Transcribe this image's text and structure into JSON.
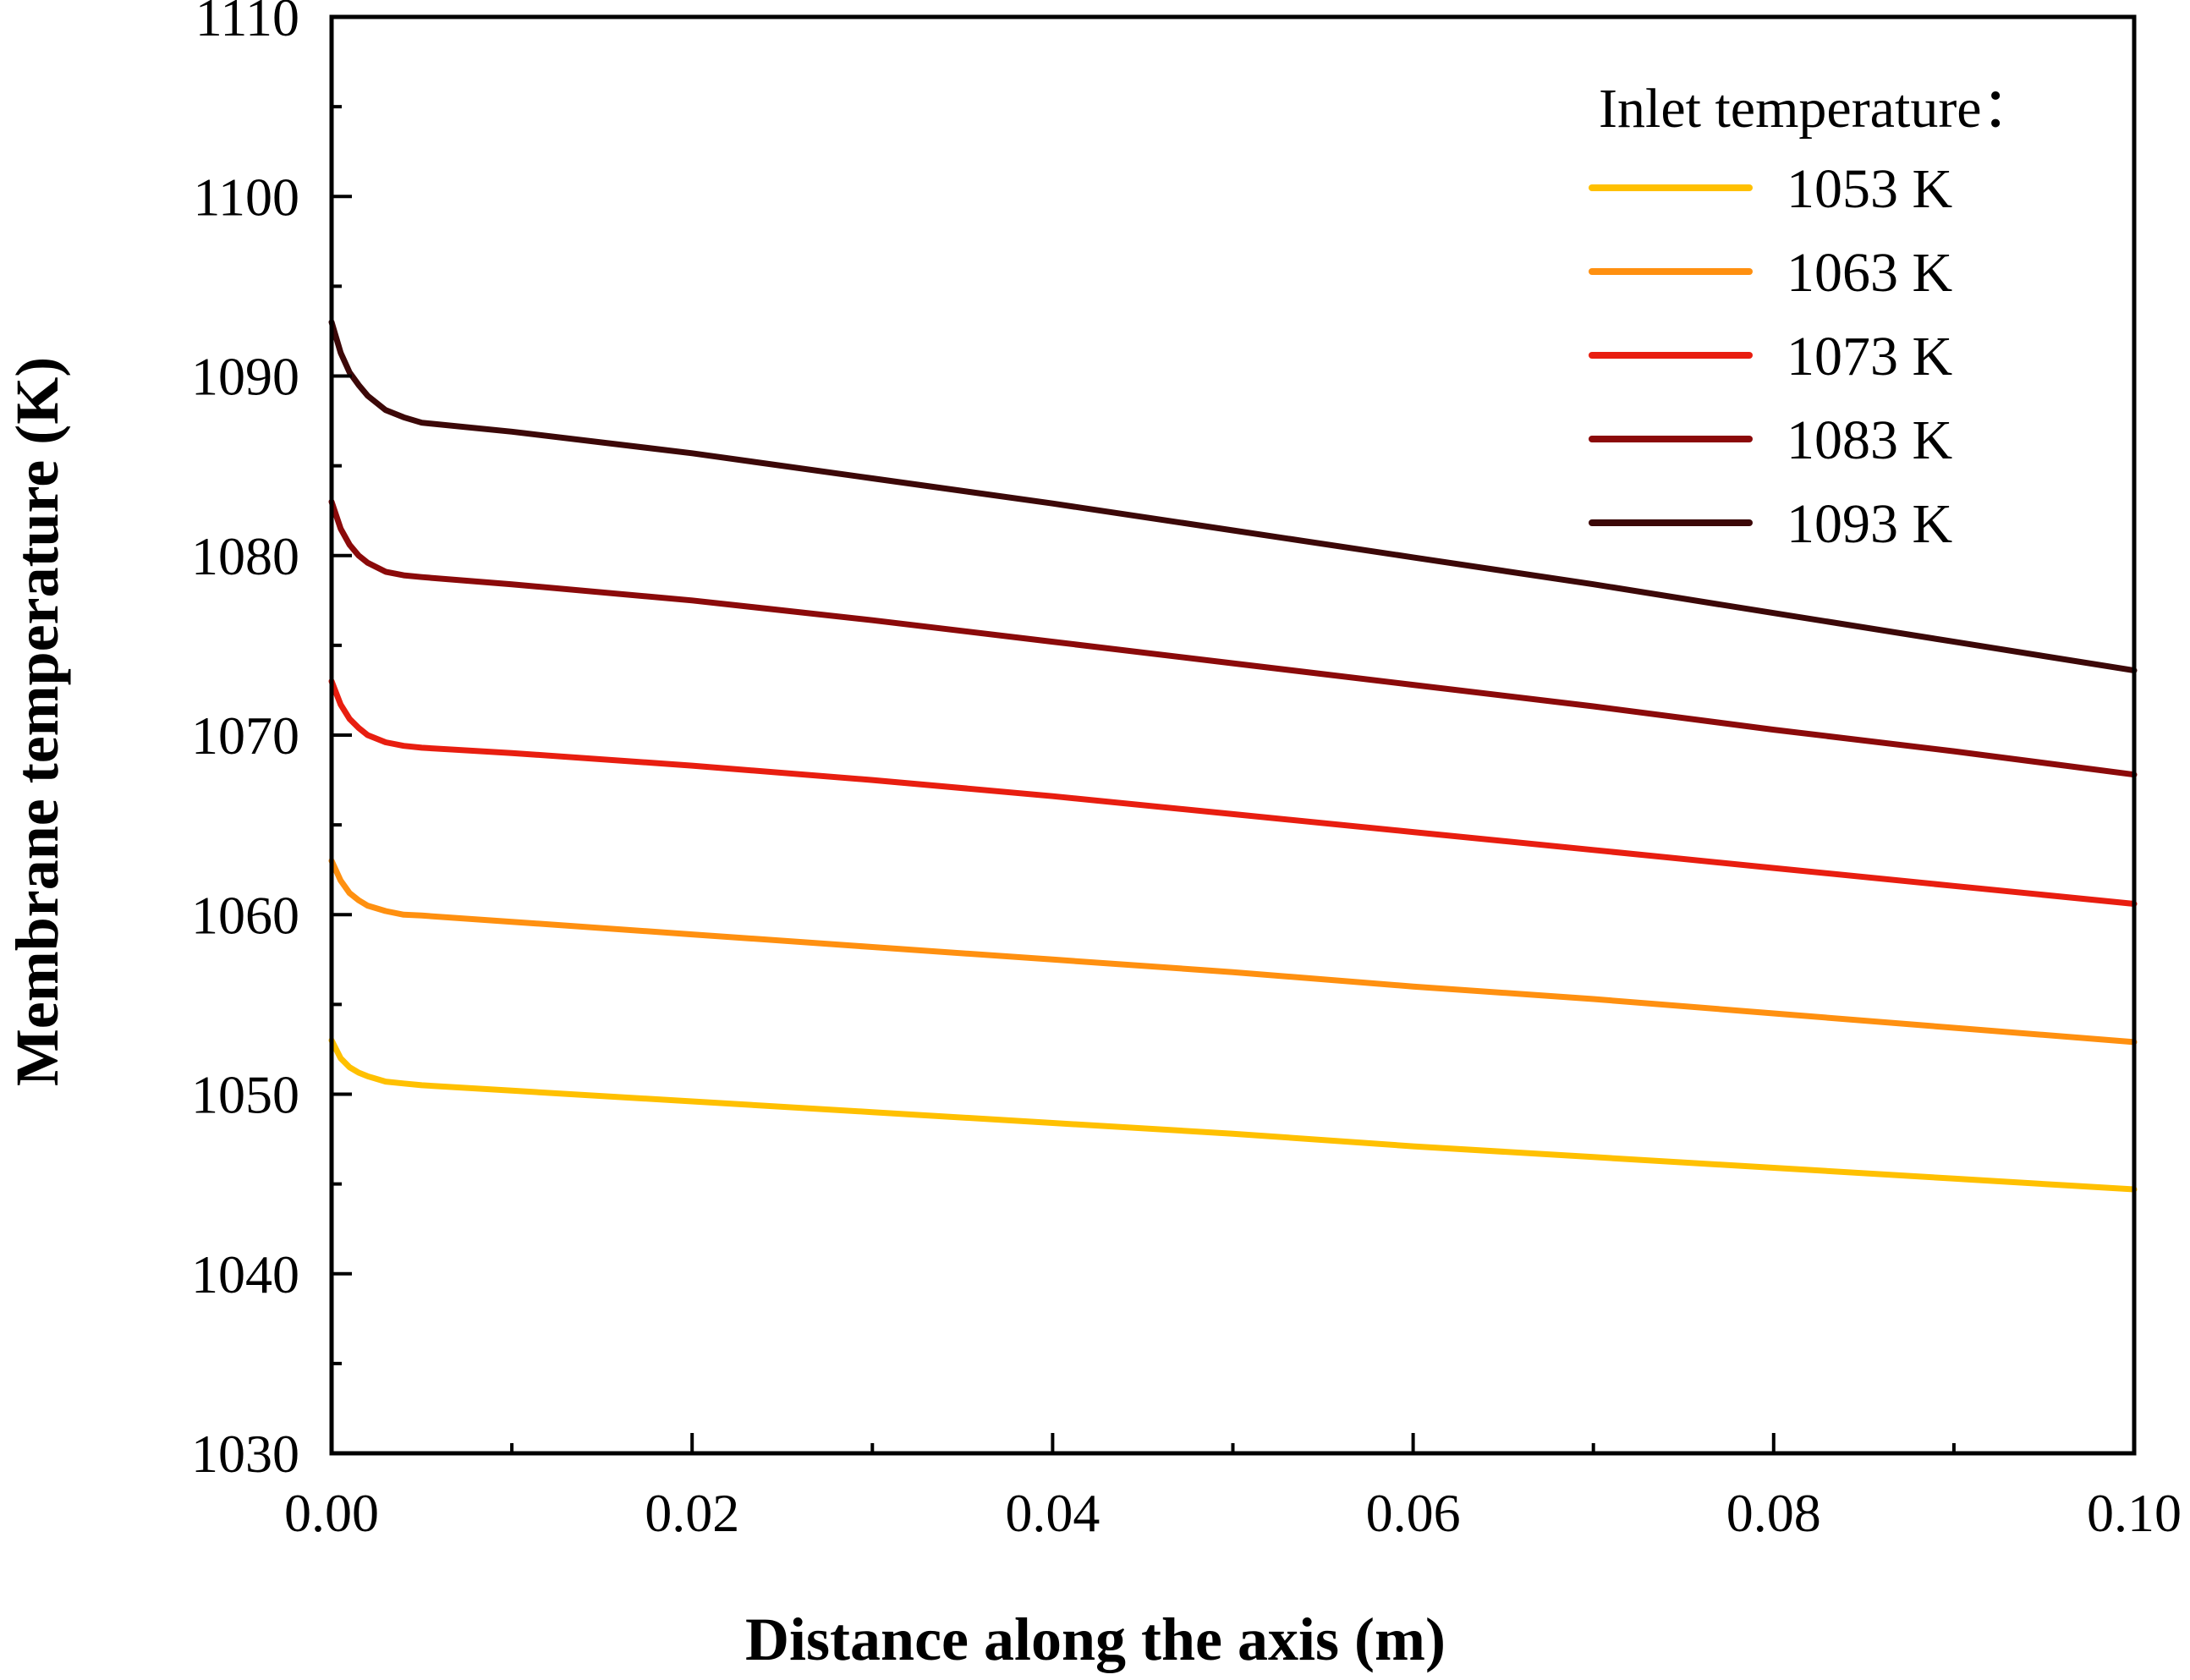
{
  "chart_data": {
    "type": "line",
    "xlabel": "Distance along the axis (m)",
    "ylabel": "Membrane temperature (K)",
    "xlim": [
      0,
      0.1
    ],
    "ylim": [
      1030,
      1110
    ],
    "x_ticks": [
      "0.00",
      "0.02",
      "0.04",
      "0.06",
      "0.08",
      "0.10"
    ],
    "y_ticks": [
      "1030",
      "1040",
      "1050",
      "1060",
      "1070",
      "1080",
      "1090",
      "1100",
      "1110"
    ],
    "legend": {
      "title": "Inlet temperature：",
      "position": "top-right"
    },
    "x": [
      0,
      0.0005,
      0.001,
      0.0015,
      0.002,
      0.003,
      0.004,
      0.005,
      0.01,
      0.02,
      0.03,
      0.04,
      0.05,
      0.06,
      0.07,
      0.08,
      0.09,
      0.1
    ],
    "series": [
      {
        "name": "1053 K",
        "color": "#FFC000",
        "values": [
          1053.0,
          1052.0,
          1051.5,
          1051.2,
          1051.0,
          1050.7,
          1050.6,
          1050.5,
          1050.2,
          1049.6,
          1049.0,
          1048.4,
          1047.8,
          1047.1,
          1046.5,
          1045.9,
          1045.3,
          1044.7
        ]
      },
      {
        "name": "1063 K",
        "color": "#FF9010",
        "values": [
          1063.0,
          1061.9,
          1061.2,
          1060.8,
          1060.5,
          1060.2,
          1060.0,
          1059.95,
          1059.6,
          1058.9,
          1058.2,
          1057.5,
          1056.8,
          1056.0,
          1055.3,
          1054.5,
          1053.7,
          1052.9
        ]
      },
      {
        "name": "1073 K",
        "color": "#E81E10",
        "values": [
          1073.0,
          1071.7,
          1070.9,
          1070.4,
          1070.0,
          1069.6,
          1069.4,
          1069.3,
          1069.0,
          1068.3,
          1067.5,
          1066.6,
          1065.6,
          1064.6,
          1063.6,
          1062.6,
          1061.6,
          1060.6
        ]
      },
      {
        "name": "1083 K",
        "color": "#8B0A0A",
        "values": [
          1083.0,
          1081.5,
          1080.6,
          1080.0,
          1079.6,
          1079.1,
          1078.9,
          1078.8,
          1078.4,
          1077.5,
          1076.4,
          1075.2,
          1074.0,
          1072.8,
          1071.6,
          1070.3,
          1069.1,
          1067.8
        ]
      },
      {
        "name": "1093 K",
        "color": "#3C0808",
        "values": [
          1093.0,
          1091.3,
          1090.2,
          1089.5,
          1088.9,
          1088.1,
          1087.7,
          1087.4,
          1086.9,
          1085.7,
          1084.3,
          1082.9,
          1081.4,
          1079.9,
          1078.4,
          1076.8,
          1075.2,
          1073.6
        ]
      }
    ]
  }
}
